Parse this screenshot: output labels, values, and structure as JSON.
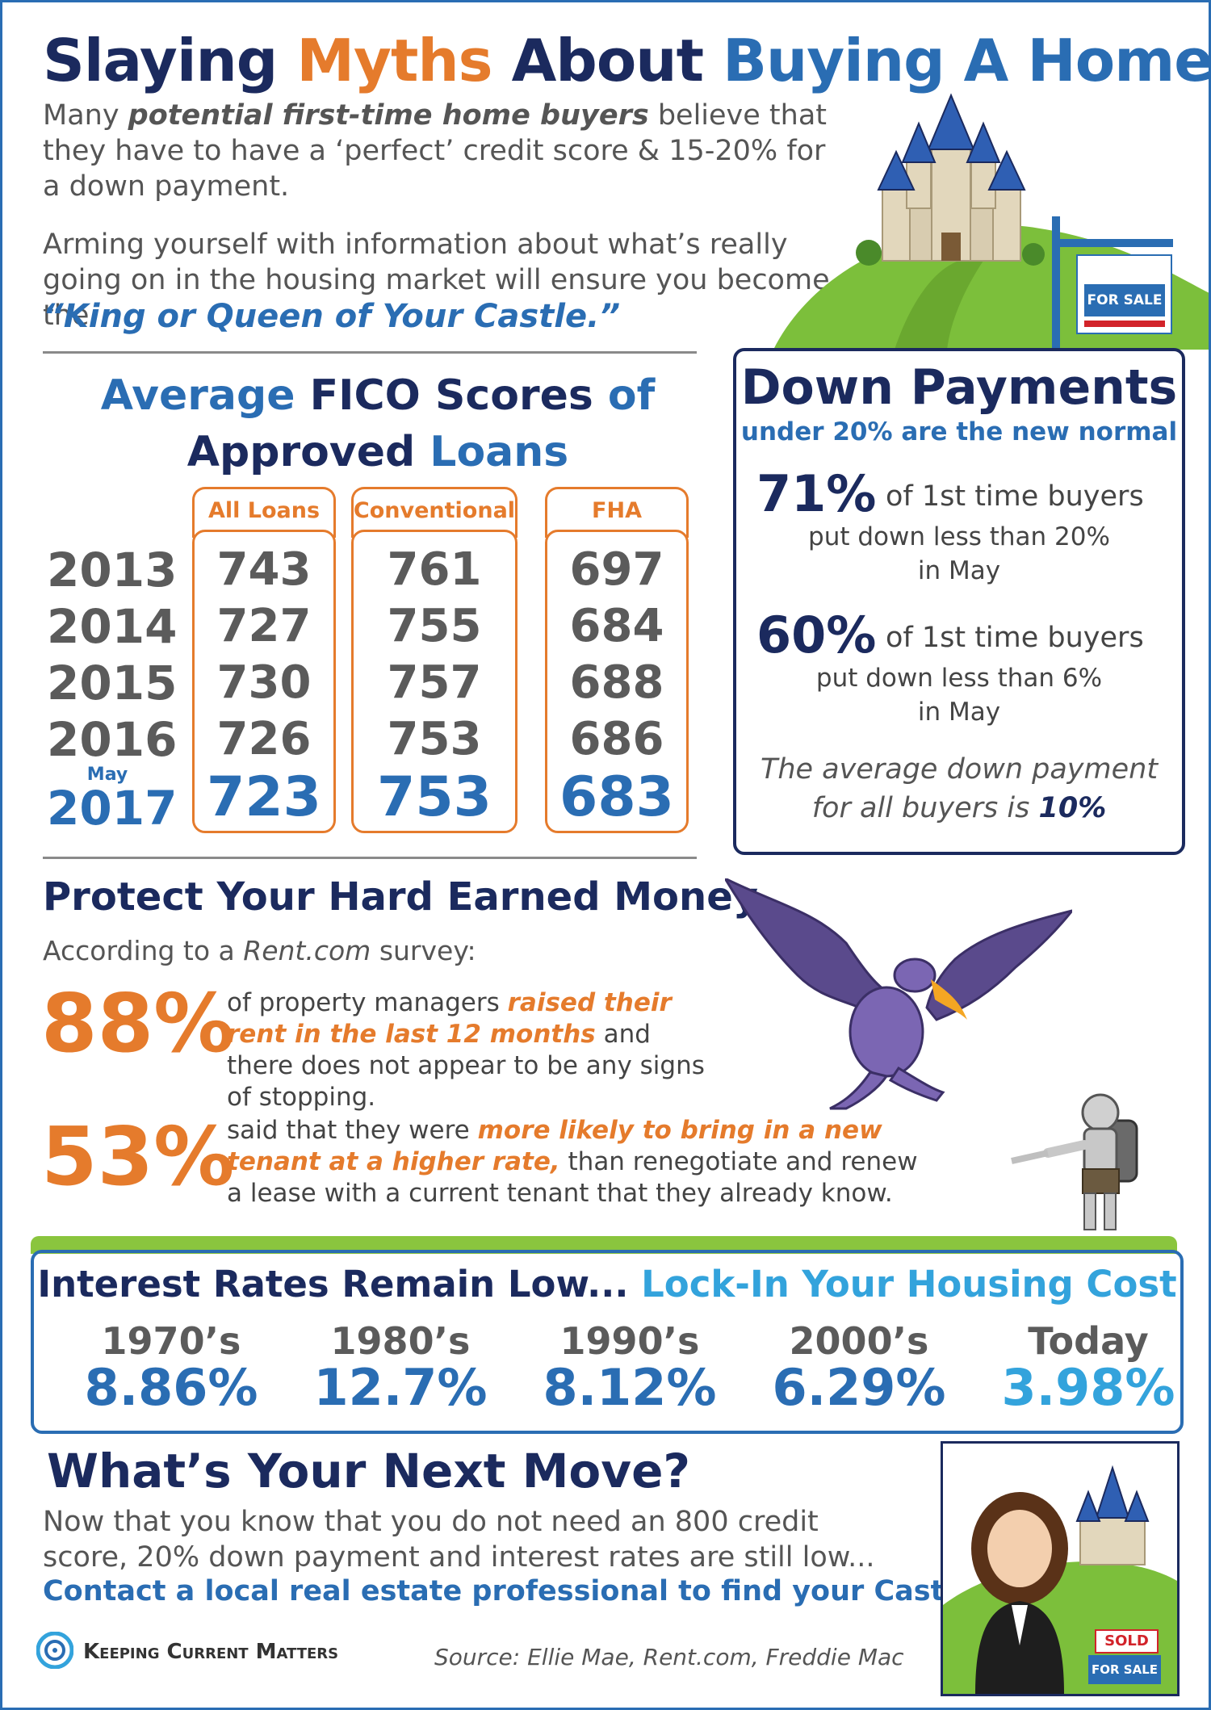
{
  "header": {
    "title_part1": "Slaying ",
    "title_part2": "Myths",
    "title_part3": " About ",
    "title_part4": "Buying A Home"
  },
  "intro": {
    "p1_a": "Many ",
    "p1_b": "potential first-time home buyers",
    "p1_c": " believe that they have to have a ‘perfect’ credit score & 15-20% for a down payment.",
    "p2": "Arming yourself with information about what’s really going on in the housing market will ensure you become the",
    "quote": "“King or Queen of Your Castle.”",
    "sign_for": "FOR",
    "sign_sale": "SALE"
  },
  "fico": {
    "title_a": "Average ",
    "title_b": "FICO Scores",
    "title_c": " of",
    "title_d": "Approved",
    "title_e": " Loans",
    "columns": [
      "All Loans",
      "Conventional",
      "FHA"
    ],
    "years": [
      "2013",
      "2014",
      "2015",
      "2016",
      "2017"
    ],
    "current_label": "May",
    "all_loans": [
      "743",
      "727",
      "730",
      "726",
      "723"
    ],
    "conventional": [
      "761",
      "755",
      "757",
      "753",
      "753"
    ],
    "fha": [
      "697",
      "684",
      "688",
      "686",
      "683"
    ]
  },
  "down_payments": {
    "title": "Down Payments",
    "subtitle": "under 20% are the new normal",
    "stat1_pct": "71%",
    "stat1_a": "of 1st time buyers",
    "stat1_b": "put down less than 20%",
    "stat1_c": "in May",
    "stat2_pct": "60%",
    "stat2_a": "of 1st time buyers",
    "stat2_b": "put down less than 6%",
    "stat2_c": "in May",
    "avg_a": "The average down payment",
    "avg_b": "for all buyers is ",
    "avg_val": "10%"
  },
  "protect": {
    "title": "Protect Your Hard Earned Money",
    "source_a": "According to a ",
    "source_b": "Rent.com",
    "source_c": " survey:",
    "stat1_pct": "88%",
    "stat1_a": "of property managers ",
    "stat1_b": "raised their rent in the last 12 months",
    "stat1_c": " and there does not appear to be any signs of stopping.",
    "stat2_pct": "53%",
    "stat2_a": "said that they were ",
    "stat2_b": "more likely to bring in a new tenant at a higher rate,",
    "stat2_c": " than renegotiate and renew a lease with a current tenant that they already know."
  },
  "rates": {
    "title_a": "Interest Rates Remain Low... ",
    "title_b": "Lock-In Your Housing Cost",
    "decades": [
      "1970’s",
      "1980’s",
      "1990’s",
      "2000’s",
      "Today"
    ],
    "values": [
      "8.86%",
      "12.7%",
      "8.12%",
      "6.29%",
      "3.98%"
    ]
  },
  "next": {
    "title": "What’s Your Next Move?",
    "body": "Now that you know that you do not need an 800 credit score, 20% down payment and interest rates are still low...",
    "cta": "Contact a local real estate professional to find your Castle!",
    "sold": "SOLD",
    "sign_for": "FOR",
    "sign_sale": "SALE"
  },
  "footer": {
    "logo_text": "Keeping Current Matters",
    "source": "Source: Ellie Mae, Rent.com, Freddie Mac"
  },
  "colors": {
    "navy": "#1b2a5e",
    "orange": "#e57b2c",
    "blue": "#2a6db3",
    "light_blue": "#33a3dc",
    "green": "#7cbf3b"
  }
}
